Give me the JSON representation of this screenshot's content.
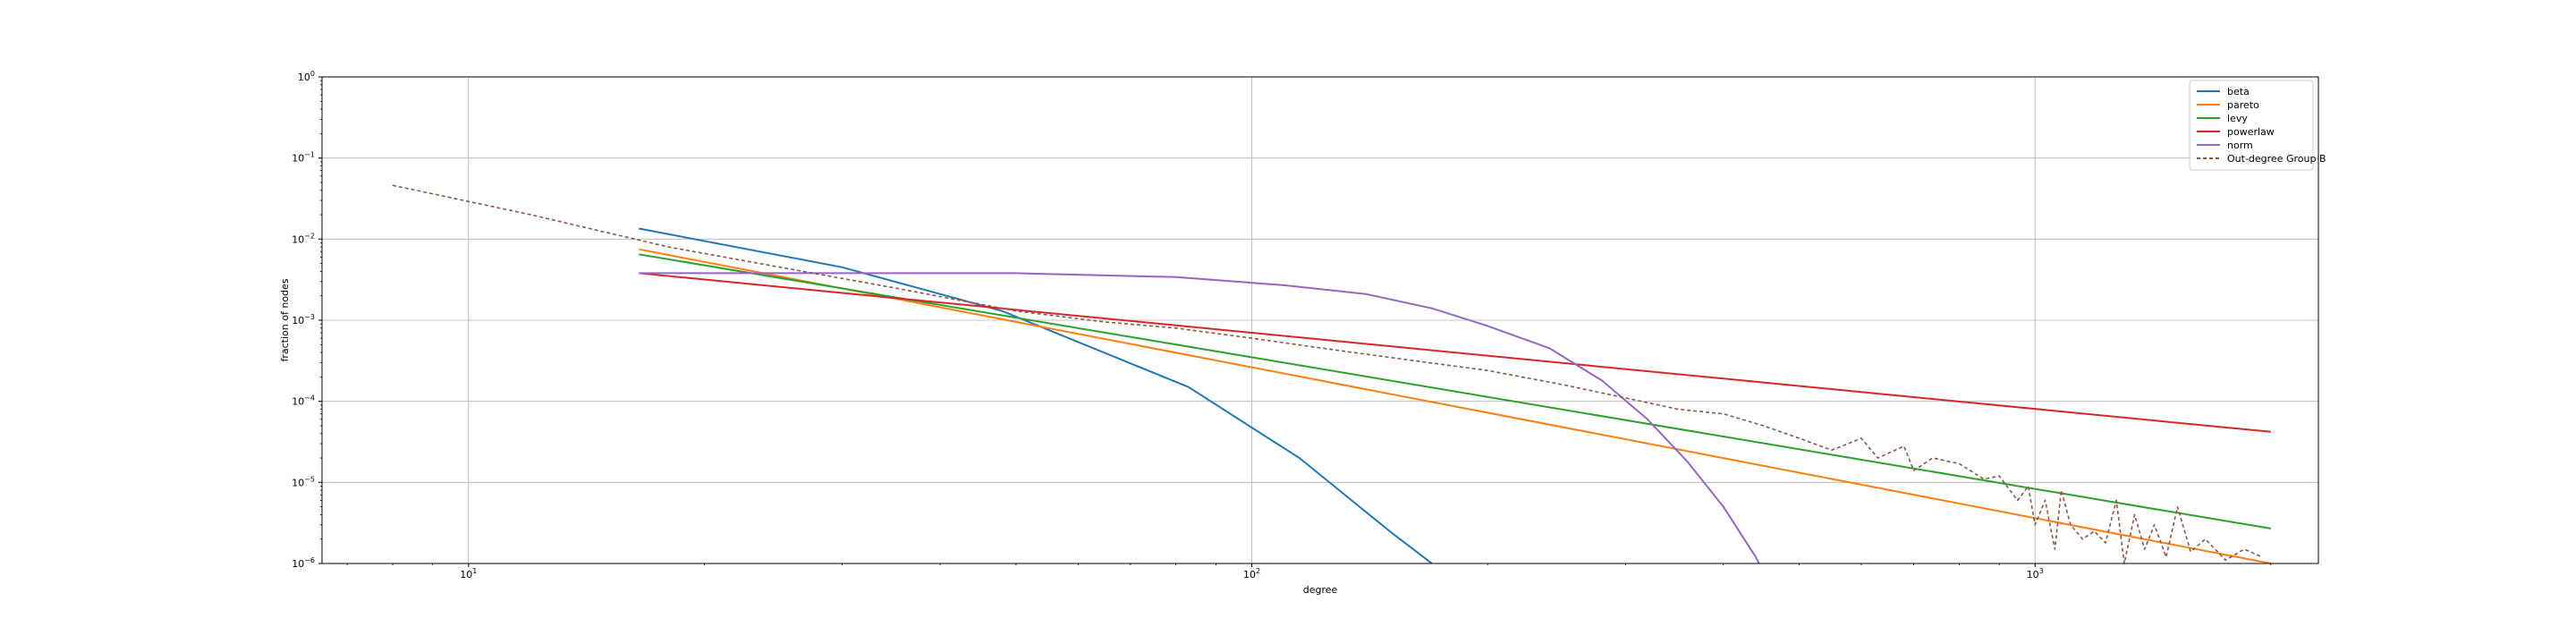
{
  "chart_data": {
    "type": "line",
    "xlabel": "degree",
    "ylabel": "fraction of nodes",
    "xscale": "log",
    "yscale": "log",
    "xlim": [
      6.5,
      2300
    ],
    "ylim": [
      1e-06,
      1
    ],
    "grid": true,
    "legend_position": "top-right",
    "x_ticks": [
      {
        "value": 10,
        "base": "10",
        "exp": "1"
      },
      {
        "value": 100,
        "base": "10",
        "exp": "2"
      },
      {
        "value": 1000,
        "base": "10",
        "exp": "3"
      }
    ],
    "y_ticks": [
      {
        "value": 1,
        "base": "10",
        "exp": "0"
      },
      {
        "value": 0.1,
        "base": "10",
        "exp": "−1"
      },
      {
        "value": 0.01,
        "base": "10",
        "exp": "−2"
      },
      {
        "value": 0.001,
        "base": "10",
        "exp": "−3"
      },
      {
        "value": 0.0001,
        "base": "10",
        "exp": "−4"
      },
      {
        "value": 1e-05,
        "base": "10",
        "exp": "−5"
      },
      {
        "value": 1e-06,
        "base": "10",
        "exp": "−6"
      }
    ],
    "series": [
      {
        "name": "beta",
        "color": "#1f77b4",
        "dash": false,
        "points": [
          [
            16.5,
            0.0135
          ],
          [
            30,
            0.0045
          ],
          [
            48,
            0.0013
          ],
          [
            83,
            0.00015
          ],
          [
            115,
            2e-05
          ],
          [
            150,
            2.5e-06
          ],
          [
            175,
            8e-07
          ]
        ]
      },
      {
        "name": "pareto",
        "color": "#ff7f0e",
        "dash": false,
        "points": [
          [
            16.5,
            0.0075
          ],
          [
            2000,
            1e-06
          ]
        ]
      },
      {
        "name": "levy",
        "color": "#2ca02c",
        "dash": false,
        "points": [
          [
            16.5,
            0.0065
          ],
          [
            2000,
            2.7e-06
          ]
        ]
      },
      {
        "name": "powerlaw",
        "color": "#d62728",
        "dash": false,
        "points": [
          [
            16.5,
            0.0038
          ],
          [
            2000,
            4.2e-05
          ]
        ]
      },
      {
        "name": "norm",
        "color": "#9467bd",
        "dash": false,
        "points": [
          [
            16.5,
            0.0038
          ],
          [
            30,
            0.0038
          ],
          [
            50,
            0.0038
          ],
          [
            80,
            0.0034
          ],
          [
            110,
            0.0027
          ],
          [
            140,
            0.0021
          ],
          [
            170,
            0.0014
          ],
          [
            200,
            0.00085
          ],
          [
            240,
            0.00045
          ],
          [
            280,
            0.00018
          ],
          [
            320,
            6e-05
          ],
          [
            360,
            1.8e-05
          ],
          [
            400,
            5e-06
          ],
          [
            440,
            1.2e-06
          ],
          [
            460,
            5e-07
          ]
        ]
      },
      {
        "name": "Out-degree Group B",
        "color": "#8c564b",
        "dash": true,
        "points": [
          [
            8,
            0.046
          ],
          [
            12,
            0.02
          ],
          [
            18,
            0.008
          ],
          [
            25,
            0.0045
          ],
          [
            35,
            0.0025
          ],
          [
            50,
            0.0013
          ],
          [
            65,
            0.00095
          ],
          [
            80,
            0.0008
          ],
          [
            100,
            0.0006
          ],
          [
            130,
            0.00042
          ],
          [
            160,
            0.00032
          ],
          [
            200,
            0.00024
          ],
          [
            250,
            0.00016
          ],
          [
            300,
            0.00011
          ],
          [
            350,
            8e-05
          ],
          [
            400,
            7e-05
          ],
          [
            450,
            5e-05
          ],
          [
            500,
            3.5e-05
          ],
          [
            550,
            2.5e-05
          ],
          [
            600,
            3.5e-05
          ],
          [
            630,
            2e-05
          ],
          [
            680,
            2.8e-05
          ],
          [
            700,
            1.4e-05
          ],
          [
            740,
            2e-05
          ],
          [
            800,
            1.7e-05
          ],
          [
            860,
            1.1e-05
          ],
          [
            900,
            1.2e-05
          ],
          [
            950,
            6e-06
          ],
          [
            980,
            9e-06
          ],
          [
            1000,
            3e-06
          ],
          [
            1030,
            6e-06
          ],
          [
            1060,
            1.5e-06
          ],
          [
            1080,
            8e-06
          ],
          [
            1110,
            3e-06
          ],
          [
            1150,
            2e-06
          ],
          [
            1190,
            2.5e-06
          ],
          [
            1230,
            1.8e-06
          ],
          [
            1270,
            6e-06
          ],
          [
            1300,
            1e-06
          ],
          [
            1340,
            4e-06
          ],
          [
            1380,
            1.5e-06
          ],
          [
            1420,
            3e-06
          ],
          [
            1470,
            1.2e-06
          ],
          [
            1520,
            5e-06
          ],
          [
            1580,
            1.4e-06
          ],
          [
            1650,
            2e-06
          ],
          [
            1750,
            1.1e-06
          ],
          [
            1850,
            1.5e-06
          ],
          [
            1950,
            1.2e-06
          ]
        ]
      }
    ]
  }
}
